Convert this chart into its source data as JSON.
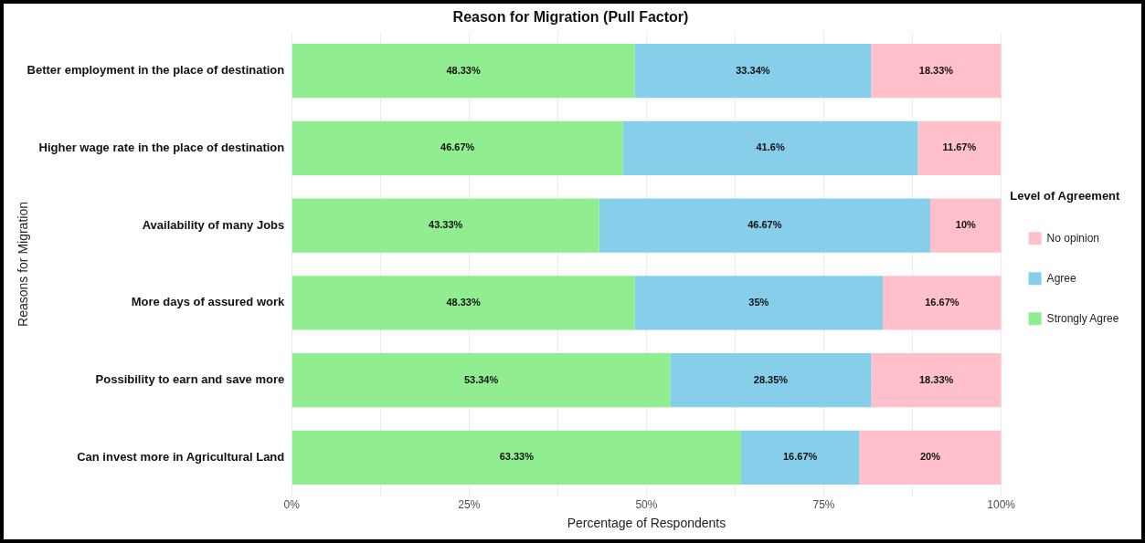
{
  "chart_data": {
    "type": "bar",
    "orientation": "horizontal",
    "stacked": true,
    "title": "Reason for Migration (Pull Factor)",
    "xlabel": "Percentage of Respondents",
    "ylabel": "Reasons for Migration",
    "legend_title": "Level of Agreement",
    "legend": "right",
    "grid": true,
    "categories": [
      "Better employment in the place of destination",
      "Higher wage rate in the place of destination",
      "Availability of many Jobs",
      "More days of assured work",
      "Possibility to earn and save more",
      "Can invest more in Agricultural Land"
    ],
    "series": [
      {
        "name": "Strongly Agree",
        "color": "#90ee90",
        "values": [
          48.33,
          46.67,
          43.33,
          48.33,
          53.34,
          63.33
        ],
        "value_labels": [
          "48.33%",
          "46.67%",
          "43.33%",
          "48.33%",
          "53.34%",
          "63.33%"
        ]
      },
      {
        "name": "Agree",
        "color": "#87ceeb",
        "values": [
          33.34,
          41.6,
          46.67,
          35,
          28.35,
          16.67
        ],
        "value_labels": [
          "33.34%",
          "41.6%",
          "46.67%",
          "35%",
          "28.35%",
          "16.67%"
        ]
      },
      {
        "name": "No opinion",
        "color": "#ffc0cb",
        "values": [
          18.33,
          11.67,
          10,
          16.67,
          18.33,
          20
        ],
        "value_labels": [
          "18.33%",
          "11.67%",
          "10%",
          "16.67%",
          "18.33%",
          "20%"
        ]
      }
    ],
    "xlim": [
      0,
      100
    ],
    "xticks": [
      {
        "value": 0,
        "label": "0%"
      },
      {
        "value": 12.5,
        "label": null
      },
      {
        "value": 25,
        "label": "25%"
      },
      {
        "value": 37.5,
        "label": null
      },
      {
        "value": 50,
        "label": "50%"
      },
      {
        "value": 62.5,
        "label": null
      },
      {
        "value": 75,
        "label": "75%"
      },
      {
        "value": 87.5,
        "label": null
      },
      {
        "value": 100,
        "label": "100%"
      }
    ]
  }
}
